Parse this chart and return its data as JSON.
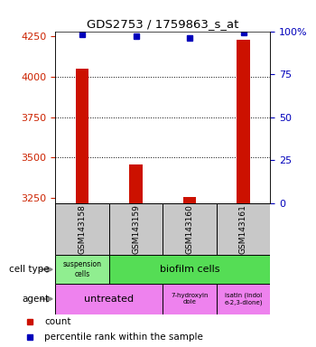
{
  "title": "GDS2753 / 1759863_s_at",
  "samples": [
    "GSM143158",
    "GSM143159",
    "GSM143160",
    "GSM143161"
  ],
  "counts": [
    4050,
    3460,
    3258,
    4230
  ],
  "percentiles": [
    98,
    97,
    96,
    99
  ],
  "ylim_left": [
    3220,
    4280
  ],
  "ylim_right": [
    0,
    100
  ],
  "yticks_left": [
    3250,
    3500,
    3750,
    4000,
    4250
  ],
  "yticks_right": [
    0,
    25,
    50,
    75,
    100
  ],
  "right_tick_labels": [
    "0",
    "25",
    "50",
    "75",
    "100%"
  ],
  "bar_color": "#CC1100",
  "dot_color": "#0000BB",
  "label_color_left": "#CC2200",
  "label_color_right": "#0000BB",
  "suspension_bg": "#90EE90",
  "biofilm_bg": "#55DD55",
  "agent_pink": "#EE82EE",
  "agent_pink2": "#EE82EE",
  "sample_gray": "#C8C8C8",
  "bar_width": 0.25
}
